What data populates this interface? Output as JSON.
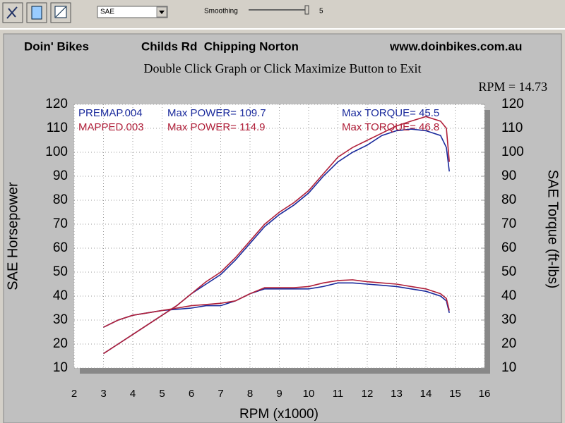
{
  "toolbar": {
    "select": "SAE",
    "smoothing_label": "Smoothing",
    "smoothing_value": "5"
  },
  "chart_data": {
    "type": "line",
    "header": [
      "Doin' Bikes",
      "Childs Rd  Chipping Norton",
      "www.doinbikes.com.au"
    ],
    "title": "Double Click Graph or Click Maximize Button to Exit",
    "cursor_label": "RPM = 14.73",
    "x_label": "RPM (x1000)",
    "y_label": "SAE Horsepower",
    "y2_label": "SAE Torque (ft-lbs)",
    "x": [
      3,
      3.5,
      4,
      4.5,
      5,
      5.5,
      6,
      6.5,
      7,
      7.5,
      8,
      8.5,
      9,
      9.5,
      10,
      10.5,
      11,
      11.5,
      12,
      12.5,
      13,
      13.5,
      14,
      14.5,
      14.7,
      14.8
    ],
    "series": [
      {
        "name": "PREMAP.004",
        "color": "#1a2a9c",
        "power_label": "Max POWER= 109.7",
        "torque_label": "Max TORQUE= 45.5",
        "power": [
          16,
          20,
          24,
          28,
          32,
          36,
          41,
          45,
          49,
          55,
          62,
          69,
          74,
          78,
          83,
          90,
          96,
          100,
          103,
          107,
          109,
          109.7,
          109,
          107,
          102,
          92
        ],
        "torque": [
          27,
          30,
          32,
          33,
          34,
          34.5,
          35,
          36,
          36,
          38,
          41,
          43,
          43,
          43,
          43,
          44,
          45.5,
          45.5,
          45,
          44.5,
          44,
          43,
          42,
          40,
          38,
          33
        ]
      },
      {
        "name": "MAPPED.003",
        "color": "#b0203a",
        "power_label": "Max POWER= 114.9",
        "torque_label": "Max TORQUE= 46.8",
        "power": [
          16,
          20,
          24,
          28,
          32,
          36,
          41,
          46,
          50,
          56,
          63,
          70,
          75,
          79,
          84,
          91,
          98,
          102,
          105,
          108,
          111,
          113,
          114.9,
          113,
          110,
          96
        ],
        "torque": [
          27,
          30,
          32,
          33,
          34,
          35,
          36,
          36.5,
          37,
          38,
          41,
          43.5,
          43.5,
          43.5,
          44,
          45.5,
          46.5,
          46.8,
          46,
          45.5,
          45,
          44,
          43,
          41,
          39,
          34
        ]
      }
    ],
    "xlim": [
      2,
      16
    ],
    "xticks": [
      2,
      3,
      4,
      5,
      6,
      7,
      8,
      9,
      10,
      11,
      12,
      13,
      14,
      15,
      16
    ],
    "ylim": [
      10,
      120
    ],
    "yticks": [
      10,
      20,
      30,
      40,
      50,
      60,
      70,
      80,
      90,
      100,
      110,
      120
    ],
    "y2lim": [
      10,
      120
    ],
    "y2ticks": [
      10,
      20,
      30,
      40,
      50,
      60,
      70,
      80,
      90,
      100,
      110,
      120
    ],
    "grid": true
  }
}
